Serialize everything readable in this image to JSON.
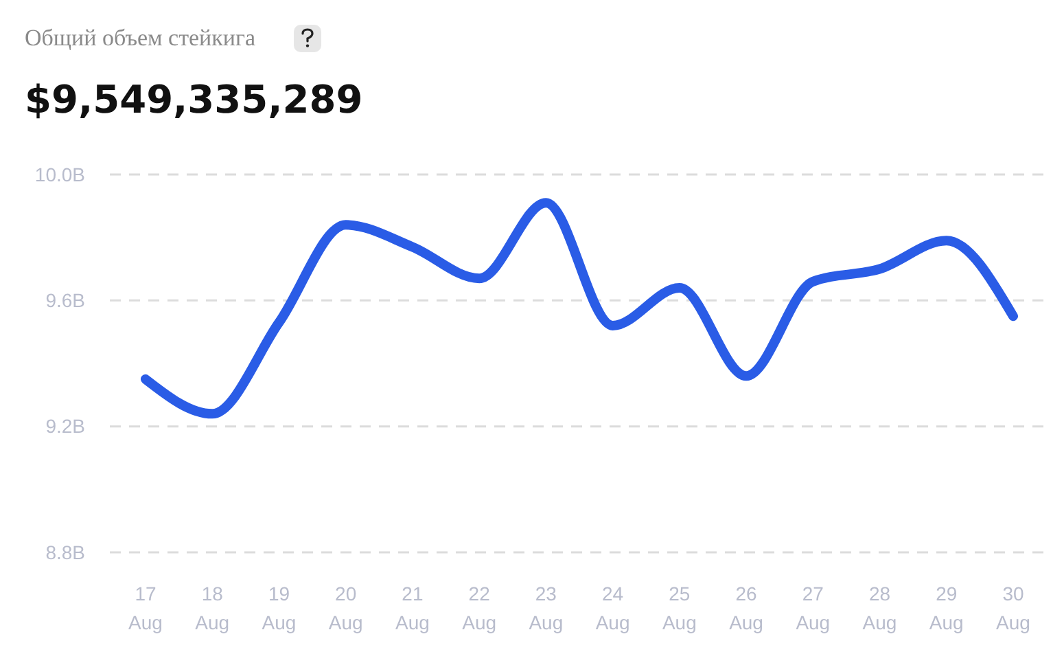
{
  "chart_data": {
    "type": "line",
    "title": "Общий объем стейкига",
    "subtitle": "$9,549,335,289",
    "categories": [
      "17 Aug",
      "18 Aug",
      "19 Aug",
      "20 Aug",
      "21 Aug",
      "22 Aug",
      "23 Aug",
      "24 Aug",
      "25 Aug",
      "26 Aug",
      "27 Aug",
      "28 Aug",
      "29 Aug",
      "30 Aug"
    ],
    "series": [
      {
        "color": "#2a5ce6",
        "values": [
          9.35,
          9.24,
          9.53,
          9.84,
          9.77,
          9.67,
          9.91,
          9.52,
          9.64,
          9.36,
          9.66,
          9.7,
          9.79,
          9.55
        ]
      }
    ],
    "ylim": [
      8.8,
      10.0
    ],
    "yticks": [
      {
        "value": 8.8,
        "label": "8.8B"
      },
      {
        "value": 9.2,
        "label": "9.2B"
      },
      {
        "value": 9.6,
        "label": "9.6B"
      },
      {
        "value": 10.0,
        "label": "10.0B"
      }
    ],
    "grid": "y",
    "marker": "none",
    "line_style": "solid"
  }
}
